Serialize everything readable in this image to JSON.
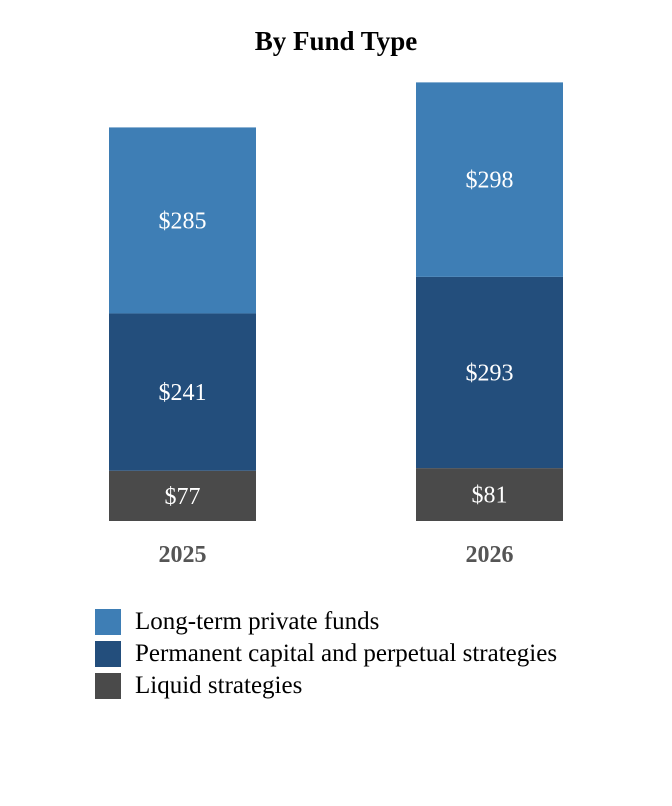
{
  "chart_data": {
    "type": "bar",
    "stacked": true,
    "title": "By Fund Type",
    "xlabel": "",
    "ylabel": "",
    "categories": [
      "2025",
      "2026"
    ],
    "series": [
      {
        "name": "Liquid strategies",
        "values": [
          77,
          81
        ],
        "labels": [
          "$77",
          "$81"
        ],
        "color": "#4a4a4a"
      },
      {
        "name": "Permanent capital and perpetual strategies",
        "values": [
          241,
          293
        ],
        "labels": [
          "$241",
          "$293"
        ],
        "color": "#234e7c"
      },
      {
        "name": "Long-term private funds",
        "values": [
          285,
          298
        ],
        "labels": [
          "$285",
          "$298"
        ],
        "color": "#3e7eb5"
      }
    ],
    "legend_order": [
      2,
      1,
      0
    ],
    "legend_position": "bottom-left",
    "grid": false,
    "ylim": [
      0,
      672
    ]
  }
}
